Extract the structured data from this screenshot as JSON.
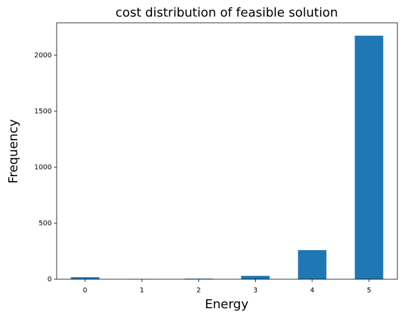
{
  "chart_data": {
    "type": "bar",
    "title": "cost distribution of feasible solution",
    "x_label": "Energy",
    "y_label": "Frequency",
    "categories": [
      "0",
      "1",
      "2",
      "3",
      "4",
      "5"
    ],
    "values": [
      18,
      1,
      5,
      30,
      260,
      2175
    ],
    "color": "#1f77b4",
    "ylim": [
      0,
      2290
    ],
    "yticks": [
      0,
      500,
      1000,
      1500,
      2000
    ],
    "grid": false
  }
}
